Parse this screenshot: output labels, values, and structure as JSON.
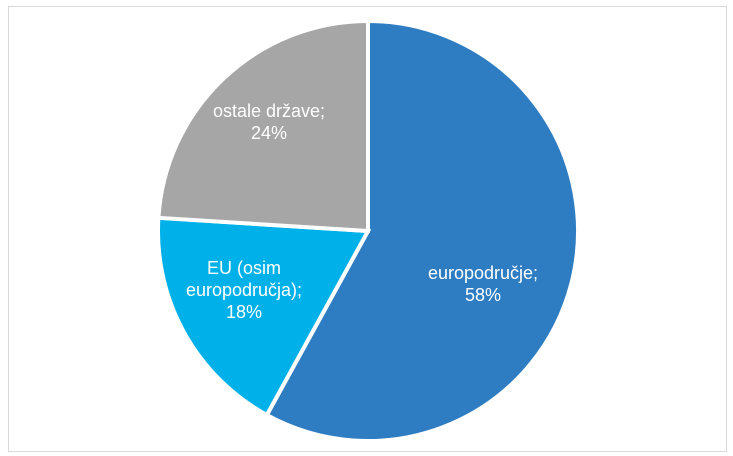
{
  "chart_data": {
    "type": "pie",
    "slices": [
      {
        "category": "europodručje",
        "value": 58,
        "value_label": "58%",
        "color": "#2e7dc2"
      },
      {
        "category": "EU (osim europodručja)",
        "value": 18,
        "value_label": "18%",
        "color": "#00b0e8"
      },
      {
        "category": "ostale države",
        "value": 24,
        "value_label": "24%",
        "color": "#a6a6a6"
      }
    ],
    "label_lines": [
      [
        "europodručje;",
        "58%"
      ],
      [
        "EU (osim",
        "europodručja);",
        "18%"
      ],
      [
        "ostale države;",
        "24%"
      ]
    ],
    "start_angle": "12 o'clock",
    "direction": "clockwise",
    "slice_separator_color": "#ffffff"
  }
}
